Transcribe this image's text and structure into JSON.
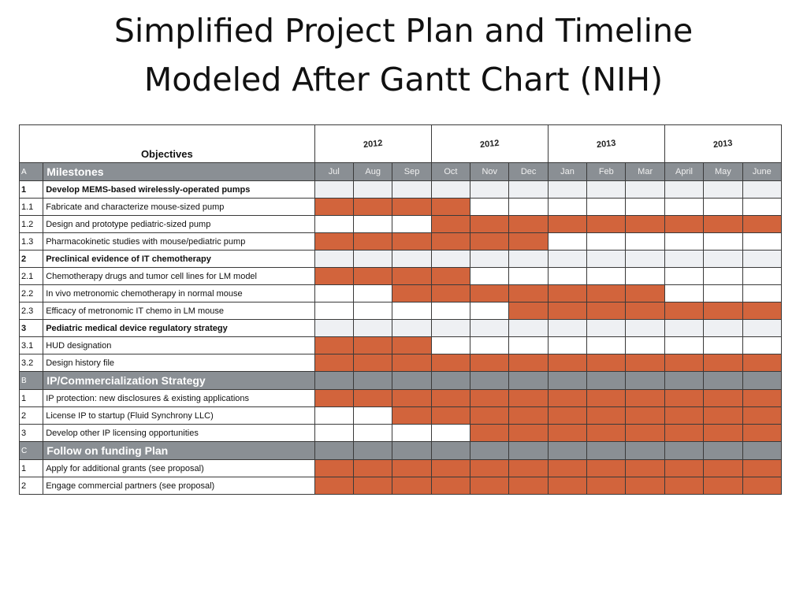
{
  "title_line1": "Simplified Project Plan and Timeline",
  "title_line2": "Modeled After Gantt Chart (NIH)",
  "chart_data": {
    "type": "table",
    "objectives_header": "Objectives",
    "years": [
      {
        "label": "2012",
        "span": 3
      },
      {
        "label": "2012",
        "span": 3
      },
      {
        "label": "2013",
        "span": 3
      },
      {
        "label": "2013",
        "span": 3
      }
    ],
    "months": [
      "Jul",
      "Aug",
      "Sep",
      "Oct",
      "Nov",
      "Dec",
      "Jan",
      "Feb",
      "Mar",
      "April",
      "May",
      "June"
    ],
    "bar_color": "#d2643c",
    "header_color": "#8a8f94",
    "rows": [
      {
        "kind": "section",
        "id": "A",
        "label": "Milestones"
      },
      {
        "kind": "task",
        "id": "1",
        "label": "Develop MEMS-based wirelessly-operated pumps",
        "bold": true,
        "active": [
          0,
          0,
          0,
          0,
          0,
          0,
          0,
          0,
          0,
          0,
          0,
          0
        ]
      },
      {
        "kind": "task",
        "id": "1.1",
        "label": "Fabricate and characterize mouse-sized pump",
        "bold": false,
        "active": [
          1,
          1,
          1,
          1,
          0,
          0,
          0,
          0,
          0,
          0,
          0,
          0
        ]
      },
      {
        "kind": "task",
        "id": "1.2",
        "label": "Design and prototype pediatric-sized pump",
        "bold": false,
        "active": [
          0,
          0,
          0,
          1,
          1,
          1,
          1,
          1,
          1,
          1,
          1,
          1
        ]
      },
      {
        "kind": "task",
        "id": "1.3",
        "label": "Pharmacokinetic studies with mouse/pediatric pump",
        "bold": false,
        "active": [
          1,
          1,
          1,
          1,
          1,
          1,
          0,
          0,
          0,
          0,
          0,
          0
        ]
      },
      {
        "kind": "task",
        "id": "2",
        "label": "Preclinical evidence of IT chemotherapy",
        "bold": true,
        "active": [
          0,
          0,
          0,
          0,
          0,
          0,
          0,
          0,
          0,
          0,
          0,
          0
        ]
      },
      {
        "kind": "task",
        "id": "2.1",
        "label": "Chemotherapy drugs and tumor cell lines for LM model",
        "bold": false,
        "active": [
          1,
          1,
          1,
          1,
          0,
          0,
          0,
          0,
          0,
          0,
          0,
          0
        ]
      },
      {
        "kind": "task",
        "id": "2.2",
        "label": "In vivo metronomic chemotherapy in normal mouse",
        "bold": false,
        "active": [
          0,
          0,
          1,
          1,
          1,
          1,
          1,
          1,
          1,
          0,
          0,
          0
        ]
      },
      {
        "kind": "task",
        "id": "2.3",
        "label": "Efficacy of metronomic IT chemo in LM mouse",
        "bold": false,
        "active": [
          0,
          0,
          0,
          0,
          0,
          1,
          1,
          1,
          1,
          1,
          1,
          1
        ]
      },
      {
        "kind": "task",
        "id": "3",
        "label": "Pediatric medical device regulatory strategy",
        "bold": true,
        "active": [
          0,
          0,
          0,
          0,
          0,
          0,
          0,
          0,
          0,
          0,
          0,
          0
        ]
      },
      {
        "kind": "task",
        "id": "3.1",
        "label": "HUD designation",
        "bold": false,
        "active": [
          1,
          1,
          1,
          0,
          0,
          0,
          0,
          0,
          0,
          0,
          0,
          0
        ]
      },
      {
        "kind": "task",
        "id": "3.2",
        "label": "Design history file",
        "bold": false,
        "active": [
          1,
          1,
          1,
          1,
          1,
          1,
          1,
          1,
          1,
          1,
          1,
          1
        ]
      },
      {
        "kind": "section",
        "id": "B",
        "label": "IP/Commercialization Strategy"
      },
      {
        "kind": "task",
        "id": "1",
        "label": "IP protection: new disclosures & existing applications",
        "bold": false,
        "active": [
          1,
          1,
          1,
          1,
          1,
          1,
          1,
          1,
          1,
          1,
          1,
          1
        ]
      },
      {
        "kind": "task",
        "id": "2",
        "label": "License IP to startup (Fluid Synchrony LLC)",
        "bold": false,
        "active": [
          0,
          0,
          1,
          1,
          1,
          1,
          1,
          1,
          1,
          1,
          1,
          1
        ]
      },
      {
        "kind": "task",
        "id": "3",
        "label": "Develop other IP licensing opportunities",
        "bold": false,
        "active": [
          0,
          0,
          0,
          0,
          1,
          1,
          1,
          1,
          1,
          1,
          1,
          1
        ]
      },
      {
        "kind": "section",
        "id": "C",
        "label": "Follow on funding Plan"
      },
      {
        "kind": "task",
        "id": "1",
        "label": "Apply for additional grants (see proposal)",
        "bold": false,
        "active": [
          1,
          1,
          1,
          1,
          1,
          1,
          1,
          1,
          1,
          1,
          1,
          1
        ]
      },
      {
        "kind": "task",
        "id": "2",
        "label": "Engage commercial partners (see proposal)",
        "bold": false,
        "active": [
          1,
          1,
          1,
          1,
          1,
          1,
          1,
          1,
          1,
          1,
          1,
          1
        ]
      }
    ]
  }
}
